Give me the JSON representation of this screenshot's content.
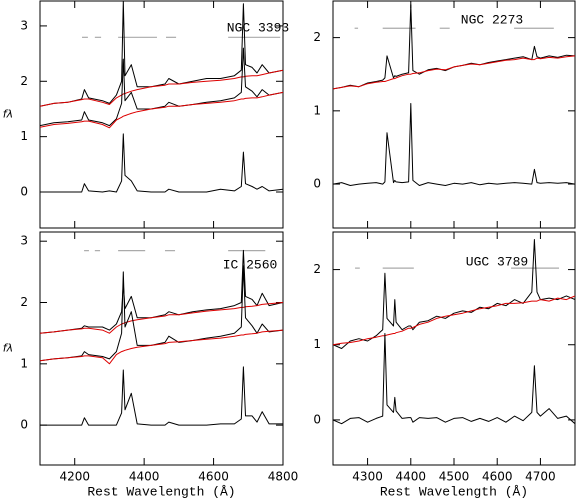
{
  "chart_data": [
    {
      "type": "line",
      "annotation": "NGC 3393",
      "ylabel": "fλ",
      "xlim": [
        4100,
        4800
      ],
      "ylim": [
        -0.65,
        3.45
      ],
      "xticks": [
        4200,
        4400,
        4600,
        4800
      ],
      "yticks": [
        0,
        1,
        2,
        3
      ],
      "xtick_labels": false,
      "bands": [
        [
          4221,
          4238
        ],
        [
          4258,
          4276
        ],
        [
          4325,
          4437
        ],
        [
          4463,
          4492
        ],
        [
          4642,
          4792
        ]
      ],
      "band_color": "#aaaaaa",
      "x": [
        4100,
        4140,
        4180,
        4220,
        4228,
        4240,
        4280,
        4300,
        4320,
        4335,
        4340,
        4345,
        4363,
        4380,
        4420,
        4460,
        4471,
        4500,
        4540,
        4580,
        4620,
        4660,
        4680,
        4686,
        4692,
        4711,
        4725,
        4740,
        4760,
        4800
      ],
      "series": [
        {
          "color": "#000000",
          "values": [
            1.55,
            1.6,
            1.62,
            1.68,
            1.85,
            1.7,
            1.65,
            1.6,
            1.75,
            2.0,
            3.45,
            2.1,
            2.3,
            1.9,
            1.9,
            1.95,
            2.05,
            1.95,
            2.0,
            2.05,
            2.05,
            2.1,
            2.2,
            3.4,
            2.3,
            2.25,
            2.15,
            2.3,
            2.15,
            2.2
          ]
        },
        {
          "color": "#dd0000",
          "values": [
            1.55,
            1.6,
            1.62,
            1.67,
            1.68,
            1.68,
            1.62,
            1.58,
            1.7,
            1.75,
            1.77,
            1.78,
            1.82,
            1.85,
            1.9,
            1.93,
            1.95,
            1.95,
            1.98,
            2.0,
            2.02,
            2.05,
            2.08,
            2.08,
            2.09,
            2.1,
            2.1,
            2.12,
            2.15,
            2.2
          ]
        },
        {
          "color": "#000000",
          "values": [
            1.2,
            1.25,
            1.27,
            1.3,
            1.45,
            1.3,
            1.25,
            1.2,
            1.32,
            1.6,
            2.4,
            1.65,
            1.8,
            1.5,
            1.5,
            1.55,
            1.62,
            1.55,
            1.58,
            1.62,
            1.65,
            1.7,
            1.8,
            2.6,
            1.9,
            1.82,
            1.72,
            1.85,
            1.75,
            1.8
          ]
        },
        {
          "color": "#dd0000",
          "values": [
            1.17,
            1.22,
            1.24,
            1.27,
            1.28,
            1.28,
            1.22,
            1.16,
            1.3,
            1.35,
            1.37,
            1.38,
            1.42,
            1.45,
            1.5,
            1.53,
            1.55,
            1.55,
            1.58,
            1.6,
            1.62,
            1.65,
            1.68,
            1.68,
            1.69,
            1.7,
            1.7,
            1.72,
            1.75,
            1.8
          ]
        },
        {
          "color": "#000000",
          "values": [
            0,
            0,
            0,
            0,
            0.15,
            0.02,
            0,
            0.02,
            0,
            0.2,
            1.05,
            0.3,
            0.2,
            0.02,
            0,
            0,
            0.05,
            0,
            0,
            0,
            0.05,
            0.02,
            0.1,
            0.72,
            0.15,
            0.1,
            0.05,
            0.1,
            0.02,
            0.05
          ]
        }
      ]
    },
    {
      "type": "line",
      "annotation": "NGC 2273",
      "xlim": [
        4220,
        4780
      ],
      "ylim": [
        -0.6,
        2.5
      ],
      "xticks": [
        4300,
        4400,
        4500,
        4600,
        4700
      ],
      "yticks": [
        0,
        1,
        2
      ],
      "xtick_labels": false,
      "bands": [
        [
          4270,
          4278
        ],
        [
          4335,
          4411
        ],
        [
          4467,
          4490
        ],
        [
          4639,
          4731
        ]
      ],
      "band_color": "#aaaaaa",
      "x": [
        4220,
        4240,
        4260,
        4280,
        4300,
        4320,
        4335,
        4340,
        4345,
        4360,
        4363,
        4366,
        4380,
        4395,
        4400,
        4405,
        4420,
        4440,
        4460,
        4480,
        4500,
        4520,
        4540,
        4560,
        4580,
        4600,
        4620,
        4640,
        4660,
        4680,
        4686,
        4692,
        4700,
        4720,
        4740,
        4760,
        4780
      ],
      "series": [
        {
          "color": "#000000",
          "values": [
            1.3,
            1.32,
            1.35,
            1.33,
            1.38,
            1.4,
            1.42,
            1.45,
            1.75,
            1.45,
            1.48,
            1.47,
            1.5,
            1.52,
            2.45,
            1.55,
            1.5,
            1.56,
            1.58,
            1.55,
            1.6,
            1.62,
            1.65,
            1.63,
            1.66,
            1.68,
            1.7,
            1.72,
            1.74,
            1.7,
            1.88,
            1.74,
            1.72,
            1.75,
            1.73,
            1.76,
            1.75
          ]
        },
        {
          "color": "#dd0000",
          "values": [
            1.3,
            1.32,
            1.34,
            1.33,
            1.37,
            1.39,
            1.4,
            1.4,
            1.41,
            1.44,
            1.44,
            1.45,
            1.48,
            1.5,
            1.5,
            1.51,
            1.52,
            1.55,
            1.57,
            1.56,
            1.6,
            1.62,
            1.64,
            1.63,
            1.65,
            1.67,
            1.69,
            1.7,
            1.72,
            1.7,
            1.7,
            1.72,
            1.71,
            1.73,
            1.72,
            1.74,
            1.75
          ]
        },
        {
          "color": "#000000",
          "values": [
            0,
            0.02,
            -0.02,
            0,
            0.01,
            0.02,
            0,
            0.03,
            0.7,
            0.02,
            0.05,
            0.03,
            0.02,
            0.03,
            1.1,
            0.05,
            -0.02,
            0.02,
            0,
            -0.02,
            0.01,
            0,
            0.02,
            -0.01,
            0.01,
            0,
            0.01,
            0.02,
            0.01,
            0,
            0.2,
            0.02,
            0.01,
            0.02,
            0.01,
            0.02,
            0
          ]
        }
      ]
    },
    {
      "type": "line",
      "annotation": "IC 2560",
      "ylabel": "fλ",
      "xlabel": "Rest Wavelength (Å)",
      "xlim": [
        4100,
        4800
      ],
      "ylim": [
        -0.65,
        3.15
      ],
      "xticks": [
        4200,
        4400,
        4600,
        4800
      ],
      "yticks": [
        0,
        1,
        2,
        3
      ],
      "xtick_labels": true,
      "bands": [
        [
          4227,
          4241
        ],
        [
          4258,
          4273
        ],
        [
          4325,
          4403
        ],
        [
          4460,
          4489
        ],
        [
          4642,
          4749
        ]
      ],
      "band_color": "#aaaaaa",
      "x": [
        4100,
        4140,
        4180,
        4220,
        4228,
        4240,
        4280,
        4300,
        4320,
        4335,
        4340,
        4345,
        4363,
        4380,
        4420,
        4460,
        4471,
        4500,
        4540,
        4580,
        4620,
        4660,
        4680,
        4686,
        4692,
        4711,
        4725,
        4740,
        4760,
        4800
      ],
      "series": [
        {
          "color": "#000000",
          "values": [
            1.5,
            1.52,
            1.55,
            1.58,
            1.62,
            1.6,
            1.6,
            1.55,
            1.65,
            1.85,
            2.3,
            1.9,
            2.1,
            1.75,
            1.75,
            1.8,
            1.85,
            1.8,
            1.85,
            1.88,
            1.9,
            1.95,
            2.0,
            2.85,
            2.1,
            2.05,
            1.95,
            2.15,
            1.95,
            2.0
          ]
        },
        {
          "color": "#dd0000",
          "values": [
            1.5,
            1.52,
            1.55,
            1.57,
            1.58,
            1.58,
            1.55,
            1.5,
            1.6,
            1.65,
            1.66,
            1.67,
            1.7,
            1.72,
            1.75,
            1.78,
            1.8,
            1.8,
            1.83,
            1.86,
            1.88,
            1.9,
            1.92,
            1.92,
            1.93,
            1.94,
            1.95,
            1.97,
            1.98,
            2.0
          ]
        },
        {
          "color": "#000000",
          "values": [
            1.05,
            1.08,
            1.1,
            1.13,
            1.2,
            1.15,
            1.12,
            1.08,
            1.2,
            1.5,
            2.5,
            1.6,
            1.85,
            1.3,
            1.3,
            1.35,
            1.45,
            1.35,
            1.38,
            1.42,
            1.45,
            1.5,
            1.6,
            2.6,
            1.75,
            1.62,
            1.5,
            1.65,
            1.52,
            1.55
          ]
        },
        {
          "color": "#dd0000",
          "values": [
            1.05,
            1.08,
            1.1,
            1.12,
            1.13,
            1.13,
            1.1,
            1.0,
            1.15,
            1.2,
            1.21,
            1.22,
            1.25,
            1.27,
            1.3,
            1.33,
            1.35,
            1.36,
            1.38,
            1.4,
            1.42,
            1.45,
            1.47,
            1.47,
            1.48,
            1.49,
            1.5,
            1.52,
            1.53,
            1.55
          ]
        },
        {
          "color": "#000000",
          "values": [
            0,
            0,
            0,
            0,
            0.12,
            0,
            0,
            0,
            0,
            0.2,
            0.9,
            0.25,
            0.52,
            0.02,
            0,
            0,
            0.05,
            0,
            0,
            0,
            0.02,
            0.02,
            0.1,
            0.95,
            0.15,
            0.15,
            0.05,
            0.22,
            0.02,
            0.02
          ]
        }
      ]
    },
    {
      "type": "line",
      "annotation": "UGC 3789",
      "xlabel": "Rest Wavelength (Å)",
      "xlim": [
        4220,
        4780
      ],
      "ylim": [
        -0.6,
        2.5
      ],
      "xticks": [
        4300,
        4400,
        4500,
        4600,
        4700
      ],
      "yticks": [
        0,
        1,
        2
      ],
      "xtick_labels": true,
      "bands": [
        [
          4271,
          4282
        ],
        [
          4335,
          4407
        ],
        [
          4632,
          4743
        ]
      ],
      "band_color": "#aaaaaa",
      "x": [
        4220,
        4240,
        4260,
        4280,
        4300,
        4320,
        4335,
        4340,
        4345,
        4360,
        4363,
        4366,
        4380,
        4395,
        4400,
        4405,
        4420,
        4440,
        4460,
        4480,
        4500,
        4520,
        4540,
        4560,
        4580,
        4600,
        4620,
        4640,
        4660,
        4680,
        4686,
        4692,
        4700,
        4720,
        4740,
        4760,
        4780
      ],
      "series": [
        {
          "color": "#000000",
          "values": [
            1.0,
            0.95,
            1.05,
            1.08,
            1.05,
            1.12,
            1.2,
            1.95,
            1.35,
            1.25,
            1.6,
            1.3,
            1.2,
            1.25,
            1.25,
            1.2,
            1.3,
            1.32,
            1.38,
            1.35,
            1.42,
            1.45,
            1.43,
            1.5,
            1.48,
            1.55,
            1.52,
            1.6,
            1.55,
            1.7,
            2.4,
            1.7,
            1.6,
            1.62,
            1.6,
            1.65,
            1.6
          ]
        },
        {
          "color": "#dd0000",
          "values": [
            1.0,
            1.02,
            1.03,
            1.05,
            1.08,
            1.1,
            1.12,
            1.12,
            1.13,
            1.15,
            1.15,
            1.16,
            1.18,
            1.22,
            1.22,
            1.23,
            1.27,
            1.3,
            1.35,
            1.38,
            1.4,
            1.42,
            1.45,
            1.48,
            1.5,
            1.52,
            1.55,
            1.55,
            1.56,
            1.58,
            1.58,
            1.58,
            1.6,
            1.58,
            1.62,
            1.6,
            1.65
          ]
        },
        {
          "color": "#000000",
          "values": [
            0,
            -0.05,
            0.02,
            0.03,
            -0.03,
            0.02,
            0.05,
            1.15,
            0.2,
            0.1,
            0.3,
            0.12,
            0.02,
            0.03,
            0.03,
            -0.03,
            0.03,
            0.02,
            0.03,
            -0.03,
            0.02,
            0.03,
            -0.02,
            0.02,
            -0.02,
            0.03,
            -0.03,
            0.05,
            -0.01,
            0.1,
            0.72,
            0.1,
            0.05,
            0.15,
            0.02,
            0.05,
            -0.05
          ]
        }
      ]
    }
  ]
}
